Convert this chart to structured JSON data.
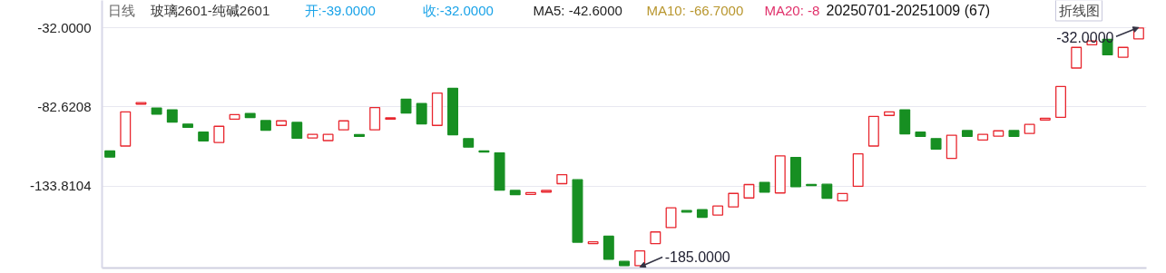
{
  "chart_data": {
    "type": "candlestick",
    "title": "玻璃2601-纯碱2601",
    "annotations": [
      "日线",
      "开:-39.0000",
      "收:-32.0000",
      "MA5: -42.6000",
      "MA10: -66.7000",
      "MA20: -8",
      "20250701-20251009 (67)",
      "折线图",
      "-185.0000",
      "-32.0000"
    ],
    "categories": [
      null,
      null,
      null,
      null,
      null,
      null,
      null,
      null,
      null,
      null,
      null,
      null,
      null,
      null,
      null,
      null,
      null,
      null,
      null,
      null,
      null,
      null,
      null,
      null,
      null,
      null,
      null,
      null,
      null,
      null,
      null,
      null,
      null,
      null,
      null,
      null,
      null,
      null,
      null,
      null,
      null,
      null,
      null,
      null,
      null,
      null,
      null,
      null,
      null,
      null,
      null,
      null,
      null,
      null,
      null,
      null,
      null,
      null,
      null,
      null,
      null,
      null,
      null,
      null,
      null,
      null,
      null
    ],
    "ohlc": [
      [
        -111.2,
        -111.2,
        -115.1,
        -115.1
      ],
      [
        -108,
        -86,
        -108,
        -86
      ],
      [
        -81,
        -80,
        -81,
        -80
      ],
      [
        -83.5,
        -83.5,
        -87.4,
        -87.4
      ],
      [
        -84.7,
        -84.7,
        -92.6,
        -92.6
      ],
      [
        -93.9,
        -93.9,
        -96,
        -96
      ],
      [
        -99.1,
        -99.1,
        -104.7,
        -104.7
      ],
      [
        -105.7,
        -95.3,
        -105.7,
        -95.3
      ],
      [
        -90.7,
        -87.8,
        -90.7,
        -87.8
      ],
      [
        -87,
        -87,
        -89.7,
        -89.7
      ],
      [
        -91.6,
        -91.6,
        -97.8,
        -97.8
      ],
      [
        -94.7,
        -91.8,
        -94.7,
        -91.8
      ],
      [
        -92.8,
        -92.8,
        -103,
        -103
      ],
      [
        -102.8,
        -100.5,
        -102.8,
        -100.5
      ],
      [
        -104.5,
        -100.5,
        -104.5,
        -100.5
      ],
      [
        -97.6,
        -91.8,
        -97.6,
        -91.8
      ],
      [
        -100.9,
        -100.9,
        -101.5,
        -101.5
      ],
      [
        -97.6,
        -83.2,
        -97.6,
        -83.2
      ],
      [
        -90.7,
        -89.9,
        -90.7,
        -89.9
      ],
      [
        -77.8,
        -77.8,
        -86.8,
        -86.8
      ],
      [
        -80.7,
        -80.7,
        -93.7,
        -93.7
      ],
      [
        -94.7,
        -73.9,
        -94.7,
        -73.9
      ],
      [
        -70.8,
        -70.8,
        -100.7,
        -100.7
      ],
      [
        -103.2,
        -103.2,
        -108.7,
        -108.7
      ],
      [
        -111.4,
        -111.4,
        -111.6,
        -111.6
      ],
      [
        -112.4,
        -112.4,
        -136.4,
        -136.4
      ],
      [
        -136.6,
        -136.6,
        -139.3,
        -139.3
      ],
      [
        -139.1,
        -138,
        -139.1,
        -138
      ],
      [
        -137.6,
        -136.6,
        -137.6,
        -136.6
      ],
      [
        -132.2,
        -126.4,
        -132.2,
        -126.4
      ],
      [
        -129.7,
        -129.7,
        -169.9,
        -169.9
      ],
      [
        -170.5,
        -170,
        -170.5,
        -170
      ],
      [
        -166,
        -166,
        -180.8,
        -180.8
      ],
      [
        -182.2,
        -182.2,
        -184.9,
        -184.9
      ],
      [
        -185,
        -175.5,
        -185,
        -175.5
      ],
      [
        -170.8,
        -163.3,
        -170.8,
        -163.3
      ],
      [
        -160.5,
        -147.8,
        -160.5,
        -147.8
      ],
      [
        -149.8,
        -149.8,
        -150.2,
        -150.2
      ],
      [
        -149,
        -149,
        -153.8,
        -153.8
      ],
      [
        -152.4,
        -146.6,
        -152.4,
        -146.6
      ],
      [
        -147.2,
        -138.5,
        -147.2,
        -138.5
      ],
      [
        -141.4,
        -132.8,
        -141.4,
        -132.8
      ],
      [
        -131.4,
        -131.4,
        -137.6,
        -137.6
      ],
      [
        -138.2,
        -114.3,
        -138.2,
        -114.3
      ],
      [
        -115.3,
        -115.3,
        -134.1,
        -134.1
      ],
      [
        -132.8,
        -132.8,
        -133.5,
        -133.5
      ],
      [
        -132.6,
        -132.6,
        -141.6,
        -141.6
      ],
      [
        -143.2,
        -138.6,
        -143.2,
        -138.6
      ],
      [
        -133.9,
        -113,
        -133.9,
        -113
      ],
      [
        -108,
        -88.9,
        -108,
        -88.9
      ],
      [
        -88.3,
        -86,
        -88.3,
        -86
      ],
      [
        -84.7,
        -84.7,
        -100.1,
        -100.1
      ],
      [
        -99.1,
        -99.1,
        -101.8,
        -101.8
      ],
      [
        -103.2,
        -103.2,
        -109.9,
        -109.9
      ],
      [
        -116,
        -101,
        -116,
        -101
      ],
      [
        -98,
        -98,
        -101.8,
        -101.8
      ],
      [
        -104.1,
        -100.5,
        -104.1,
        -100.5
      ],
      [
        -101.6,
        -98.2,
        -101.6,
        -98.2
      ],
      [
        -98,
        -98,
        -101.8,
        -101.8
      ],
      [
        -99.9,
        -94.1,
        -99.9,
        -94.1
      ],
      [
        -91.2,
        -90.1,
        -91.2,
        -90.1
      ],
      [
        -89.5,
        -69.7,
        -89.5,
        -69.7
      ],
      [
        -57.8,
        -44.5,
        -57.8,
        -44.5
      ],
      [
        -42.8,
        -40.3,
        -42.8,
        -40.3
      ],
      [
        -39.3,
        -39.3,
        -49.3,
        -49.3
      ],
      [
        -50.8,
        -44.5,
        -50.8,
        -44.5
      ],
      [
        -39,
        -32,
        -39,
        -32
      ]
    ],
    "ylim": [
      -186.5,
      -14.3
    ],
    "yticks": [
      {
        "value": -32,
        "label": "-32.0000"
      },
      {
        "value": -82.6208,
        "label": "-82.6208"
      },
      {
        "value": -133.8104,
        "label": "-133.8104"
      }
    ],
    "grid": "y"
  }
}
